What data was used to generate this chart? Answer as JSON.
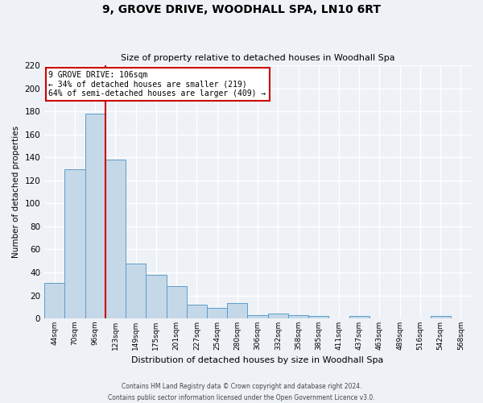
{
  "title": "9, GROVE DRIVE, WOODHALL SPA, LN10 6RT",
  "subtitle": "Size of property relative to detached houses in Woodhall Spa",
  "xlabel": "Distribution of detached houses by size in Woodhall Spa",
  "ylabel": "Number of detached properties",
  "bin_labels": [
    "44sqm",
    "70sqm",
    "96sqm",
    "123sqm",
    "149sqm",
    "175sqm",
    "201sqm",
    "227sqm",
    "254sqm",
    "280sqm",
    "306sqm",
    "332sqm",
    "358sqm",
    "385sqm",
    "411sqm",
    "437sqm",
    "463sqm",
    "489sqm",
    "516sqm",
    "542sqm",
    "568sqm"
  ],
  "bin_values": [
    31,
    130,
    178,
    138,
    48,
    38,
    28,
    12,
    9,
    13,
    3,
    4,
    3,
    2,
    0,
    2,
    0,
    0,
    0,
    2,
    0
  ],
  "bar_color": "#c5d8e8",
  "bar_edge_color": "#5b9dc9",
  "vline_color": "#cc0000",
  "annotation_title": "9 GROVE DRIVE: 106sqm",
  "annotation_line1": "← 34% of detached houses are smaller (219)",
  "annotation_line2": "64% of semi-detached houses are larger (409) →",
  "annotation_box_color": "#ffffff",
  "annotation_box_edge": "#cc0000",
  "ylim": [
    0,
    220
  ],
  "yticks": [
    0,
    20,
    40,
    60,
    80,
    100,
    120,
    140,
    160,
    180,
    200,
    220
  ],
  "footer1": "Contains HM Land Registry data © Crown copyright and database right 2024.",
  "footer2": "Contains public sector information licensed under the Open Government Licence v3.0.",
  "bg_color": "#eef2f7",
  "grid_color": "#ffffff"
}
